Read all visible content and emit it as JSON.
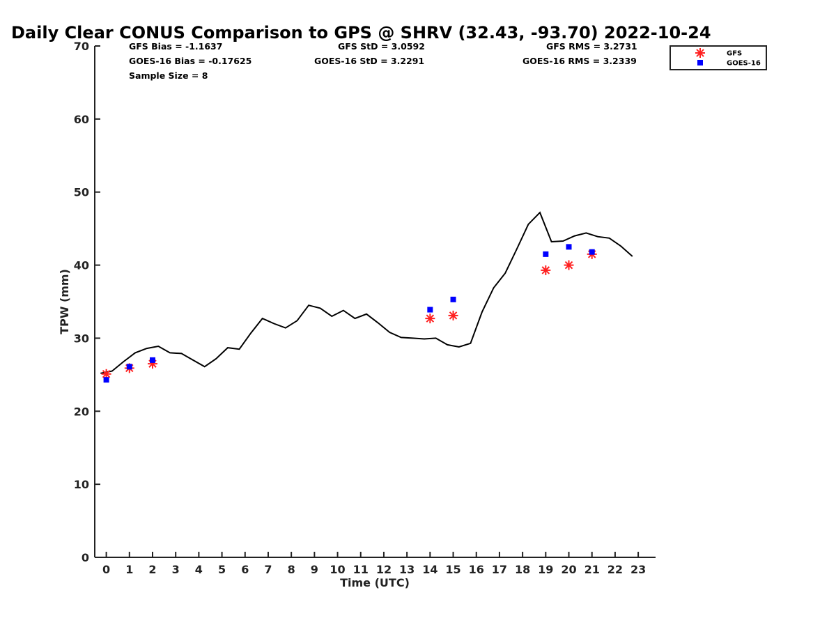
{
  "chart_data": {
    "type": "line",
    "title": "Daily Clear CONUS Comparison to GPS @ SHRV (32.43, -93.70) 2022-10-24",
    "xlabel": "Time (UTC)",
    "ylabel": "TPW (mm)",
    "xlim": [
      -0.5,
      23.75
    ],
    "ylim": [
      0,
      70
    ],
    "x_ticks": [
      "0",
      "1",
      "2",
      "3",
      "4",
      "5",
      "6",
      "7",
      "8",
      "9",
      "10",
      "11",
      "12",
      "13",
      "14",
      "15",
      "16",
      "17",
      "18",
      "19",
      "20",
      "21",
      "22",
      "23"
    ],
    "y_ticks": [
      "0",
      "10",
      "20",
      "30",
      "40",
      "50",
      "60",
      "70"
    ],
    "grid": false,
    "legend_position": "top-right",
    "stats": {
      "gfs_bias": "GFS Bias = -1.1637",
      "goes_bias": "GOES-16 Bias = -0.17625",
      "sample_size": "Sample Size = 8",
      "gfs_std": "GFS StD = 3.0592",
      "goes_std": "GOES-16 StD = 3.2291",
      "gfs_rms": "GFS RMS = 3.2731",
      "goes_rms": "GOES-16 RMS = 3.2339"
    },
    "series": [
      {
        "color": "#000000",
        "style": "line",
        "points": [
          [
            -0.25,
            25.2
          ],
          [
            0.25,
            25.5
          ],
          [
            0.75,
            26.8
          ],
          [
            1.25,
            28.0
          ],
          [
            1.75,
            28.6
          ],
          [
            2.25,
            28.9
          ],
          [
            2.75,
            28.0
          ],
          [
            3.25,
            27.9
          ],
          [
            3.75,
            27.0
          ],
          [
            4.25,
            26.1
          ],
          [
            4.75,
            27.2
          ],
          [
            5.25,
            28.7
          ],
          [
            5.75,
            28.5
          ],
          [
            6.25,
            30.7
          ],
          [
            6.75,
            32.7
          ],
          [
            7.25,
            32.0
          ],
          [
            7.75,
            31.4
          ],
          [
            8.25,
            32.4
          ],
          [
            8.75,
            34.5
          ],
          [
            9.25,
            34.1
          ],
          [
            9.75,
            33.0
          ],
          [
            10.25,
            33.8
          ],
          [
            10.75,
            32.7
          ],
          [
            11.25,
            33.3
          ],
          [
            11.75,
            32.1
          ],
          [
            12.25,
            30.8
          ],
          [
            12.75,
            30.1
          ],
          [
            13.25,
            30.0
          ],
          [
            13.75,
            29.9
          ],
          [
            14.25,
            30.0
          ],
          [
            14.75,
            29.1
          ],
          [
            15.25,
            28.8
          ],
          [
            15.75,
            29.3
          ],
          [
            16.25,
            33.6
          ],
          [
            16.75,
            36.9
          ],
          [
            17.25,
            38.9
          ],
          [
            17.75,
            42.2
          ],
          [
            18.25,
            45.6
          ],
          [
            18.75,
            47.2
          ],
          [
            19.25,
            43.2
          ],
          [
            19.75,
            43.3
          ],
          [
            20.25,
            44.0
          ],
          [
            20.75,
            44.4
          ],
          [
            21.25,
            43.9
          ],
          [
            21.75,
            43.7
          ],
          [
            22.25,
            42.6
          ],
          [
            22.75,
            41.2
          ]
        ]
      },
      {
        "name": "GFS",
        "color": "#ff2020",
        "marker": "asterisk",
        "points": [
          [
            0,
            25.1
          ],
          [
            1,
            25.9
          ],
          [
            2,
            26.5
          ],
          [
            14,
            32.7
          ],
          [
            15,
            33.1
          ],
          [
            19,
            39.3
          ],
          [
            20,
            40.0
          ],
          [
            21,
            41.5
          ]
        ]
      },
      {
        "name": "GOES-16",
        "color": "#0000ff",
        "marker": "square",
        "points": [
          [
            0,
            24.3
          ],
          [
            1,
            26.1
          ],
          [
            2,
            27.0
          ],
          [
            14,
            33.9
          ],
          [
            15,
            35.3
          ],
          [
            19,
            41.5
          ],
          [
            20,
            42.5
          ],
          [
            21,
            41.8
          ]
        ]
      }
    ]
  }
}
